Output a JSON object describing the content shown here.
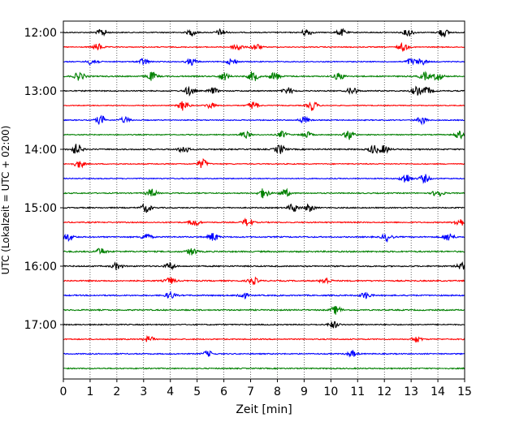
{
  "chart_data": {
    "type": "line",
    "subtype": "helicorder",
    "title": "",
    "xlabel": "Zeit  [min]",
    "ylabel": "UTC (Lokalzeit = UTC + 02:00)",
    "xlim": [
      0,
      15
    ],
    "x_ticks": [
      "0",
      "1",
      "2",
      "3",
      "4",
      "5",
      "6",
      "7",
      "8",
      "9",
      "10",
      "11",
      "12",
      "13",
      "14",
      "15"
    ],
    "y_tick_labels": [
      "12:00",
      "13:00",
      "14:00",
      "15:00",
      "16:00",
      "17:00"
    ],
    "grid": "vertical dotted lines at every minute",
    "trace_interval_minutes": 15,
    "trace_colors": [
      "#000000",
      "#ff0000",
      "#0000ff",
      "#008000"
    ],
    "rows": [
      {
        "start": "12:00",
        "color": "#000000",
        "base_amplitude": 0.35,
        "bursts": [
          [
            1.45,
            0.9
          ],
          [
            4.8,
            0.7
          ],
          [
            5.9,
            0.8
          ],
          [
            9.1,
            0.9
          ],
          [
            10.4,
            0.8
          ],
          [
            12.9,
            0.9
          ],
          [
            14.2,
            1.0
          ]
        ]
      },
      {
        "start": "12:15",
        "color": "#ff0000",
        "base_amplitude": 0.35,
        "bursts": [
          [
            1.3,
            0.8
          ],
          [
            6.5,
            1.0
          ],
          [
            7.2,
            0.8
          ],
          [
            12.7,
            0.9
          ]
        ]
      },
      {
        "start": "12:30",
        "color": "#0000ff",
        "base_amplitude": 0.35,
        "bursts": [
          [
            1.1,
            0.9
          ],
          [
            3.0,
            0.8
          ],
          [
            4.8,
            0.8
          ],
          [
            6.3,
            0.7
          ],
          [
            13.0,
            0.8
          ],
          [
            13.4,
            0.7
          ]
        ]
      },
      {
        "start": "12:45",
        "color": "#008000",
        "base_amplitude": 0.45,
        "bursts": [
          [
            0.6,
            1.0
          ],
          [
            3.3,
            1.0
          ],
          [
            6.0,
            0.9
          ],
          [
            7.1,
            1.2
          ],
          [
            7.9,
            1.0
          ],
          [
            10.3,
            0.9
          ],
          [
            13.5,
            0.9
          ],
          [
            14.0,
            1.0
          ]
        ]
      },
      {
        "start": "13:00",
        "color": "#000000",
        "base_amplitude": 0.4,
        "bursts": [
          [
            4.7,
            1.0
          ],
          [
            5.6,
            0.7
          ],
          [
            8.4,
            0.8
          ],
          [
            10.8,
            0.9
          ],
          [
            13.2,
            1.0
          ],
          [
            13.6,
            0.9
          ]
        ]
      },
      {
        "start": "13:15",
        "color": "#ff0000",
        "base_amplitude": 0.3,
        "bursts": [
          [
            4.5,
            1.3
          ],
          [
            5.5,
            0.7
          ],
          [
            7.1,
            1.0
          ],
          [
            9.3,
            1.2
          ]
        ]
      },
      {
        "start": "13:30",
        "color": "#0000ff",
        "base_amplitude": 0.35,
        "bursts": [
          [
            1.4,
            1.1
          ],
          [
            2.3,
            0.7
          ],
          [
            9.0,
            0.8
          ],
          [
            13.4,
            0.9
          ]
        ]
      },
      {
        "start": "13:45",
        "color": "#008000",
        "base_amplitude": 0.35,
        "bursts": [
          [
            6.8,
            0.8
          ],
          [
            8.2,
            0.8
          ],
          [
            9.1,
            0.7
          ],
          [
            10.7,
            1.2
          ],
          [
            14.8,
            0.9
          ]
        ]
      },
      {
        "start": "14:00",
        "color": "#000000",
        "base_amplitude": 0.45,
        "bursts": [
          [
            0.5,
            1.3
          ],
          [
            4.5,
            0.9
          ],
          [
            8.1,
            1.1
          ],
          [
            11.6,
            1.0
          ],
          [
            12.0,
            0.9
          ]
        ]
      },
      {
        "start": "14:15",
        "color": "#ff0000",
        "base_amplitude": 0.35,
        "bursts": [
          [
            0.6,
            0.9
          ],
          [
            5.2,
            1.1
          ]
        ]
      },
      {
        "start": "14:30",
        "color": "#0000ff",
        "base_amplitude": 0.35,
        "bursts": [
          [
            12.8,
            1.2
          ],
          [
            13.5,
            1.0
          ]
        ]
      },
      {
        "start": "14:45",
        "color": "#008000",
        "base_amplitude": 0.4,
        "bursts": [
          [
            3.3,
            1.0
          ],
          [
            7.5,
            1.2
          ],
          [
            8.3,
            0.9
          ],
          [
            14.0,
            1.0
          ]
        ]
      },
      {
        "start": "15:00",
        "color": "#000000",
        "base_amplitude": 0.4,
        "bursts": [
          [
            3.1,
            1.1
          ],
          [
            8.6,
            1.0
          ],
          [
            9.2,
            0.9
          ]
        ]
      },
      {
        "start": "15:15",
        "color": "#ff0000",
        "base_amplitude": 0.4,
        "bursts": [
          [
            4.9,
            0.9
          ],
          [
            6.9,
            1.0
          ],
          [
            14.8,
            1.0
          ]
        ]
      },
      {
        "start": "15:30",
        "color": "#0000ff",
        "base_amplitude": 0.45,
        "bursts": [
          [
            0.2,
            0.9
          ],
          [
            3.1,
            0.8
          ],
          [
            5.6,
            1.0
          ],
          [
            12.1,
            0.9
          ],
          [
            14.4,
            1.0
          ]
        ]
      },
      {
        "start": "15:45",
        "color": "#008000",
        "base_amplitude": 0.5,
        "bursts": [
          [
            1.4,
            0.8
          ],
          [
            4.8,
            0.8
          ]
        ]
      },
      {
        "start": "16:00",
        "color": "#000000",
        "base_amplitude": 0.45,
        "bursts": [
          [
            2.0,
            0.8
          ],
          [
            4.0,
            0.8
          ],
          [
            14.9,
            0.8
          ]
        ]
      },
      {
        "start": "16:15",
        "color": "#ff0000",
        "base_amplitude": 0.45,
        "bursts": [
          [
            4.0,
            0.8
          ],
          [
            7.1,
            0.8
          ],
          [
            9.8,
            0.8
          ]
        ]
      },
      {
        "start": "16:30",
        "color": "#0000ff",
        "base_amplitude": 0.45,
        "bursts": [
          [
            4.0,
            0.8
          ],
          [
            6.7,
            0.8
          ],
          [
            11.3,
            0.8
          ]
        ]
      },
      {
        "start": "16:45",
        "color": "#008000",
        "base_amplitude": 0.45,
        "bursts": [
          [
            10.2,
            1.0
          ]
        ]
      },
      {
        "start": "17:00",
        "color": "#000000",
        "base_amplitude": 0.4,
        "bursts": [
          [
            10.1,
            0.8
          ]
        ]
      },
      {
        "start": "17:15",
        "color": "#ff0000",
        "base_amplitude": 0.4,
        "bursts": [
          [
            3.2,
            0.7
          ],
          [
            13.2,
            0.7
          ]
        ]
      },
      {
        "start": "17:30",
        "color": "#0000ff",
        "base_amplitude": 0.4,
        "bursts": [
          [
            5.4,
            0.7
          ],
          [
            10.8,
            0.7
          ]
        ]
      },
      {
        "start": "17:45",
        "color": "#008000",
        "base_amplitude": 0.4,
        "bursts": []
      }
    ]
  }
}
